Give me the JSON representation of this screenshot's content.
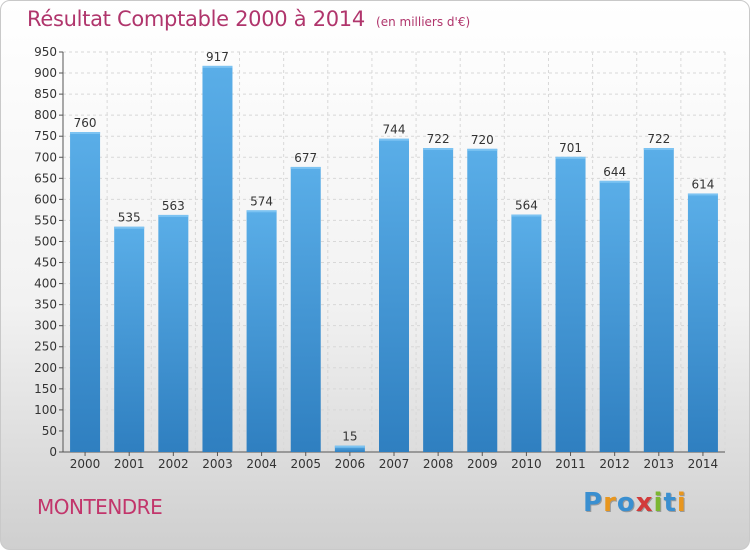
{
  "title": "Résultat Comptable 2000 à 2014",
  "subtitle": "(en milliers d'€)",
  "city": "MONTENDRE",
  "logo": {
    "letters": [
      "P",
      "r",
      "o",
      "x",
      "i",
      "t",
      "i"
    ]
  },
  "colors": {
    "bar_top": "#5aaee8",
    "bar_bottom": "#2f7fc0",
    "title": "#b0356c",
    "city": "#c2356b"
  },
  "chart_data": {
    "type": "bar",
    "categories": [
      "2000",
      "2001",
      "2002",
      "2003",
      "2004",
      "2005",
      "2006",
      "2007",
      "2008",
      "2009",
      "2010",
      "2011",
      "2012",
      "2013",
      "2014"
    ],
    "values": [
      760,
      535,
      563,
      917,
      574,
      677,
      15,
      744,
      722,
      720,
      564,
      701,
      644,
      722,
      614
    ],
    "title": "Résultat Comptable 2000 à 2014",
    "subtitle": "(en milliers d'€)",
    "ylim": [
      0,
      950
    ],
    "yticks": [
      0,
      50,
      100,
      150,
      200,
      250,
      300,
      350,
      400,
      450,
      500,
      550,
      600,
      650,
      700,
      750,
      800,
      850,
      900,
      950
    ],
    "grid": true,
    "data_labels": true
  }
}
